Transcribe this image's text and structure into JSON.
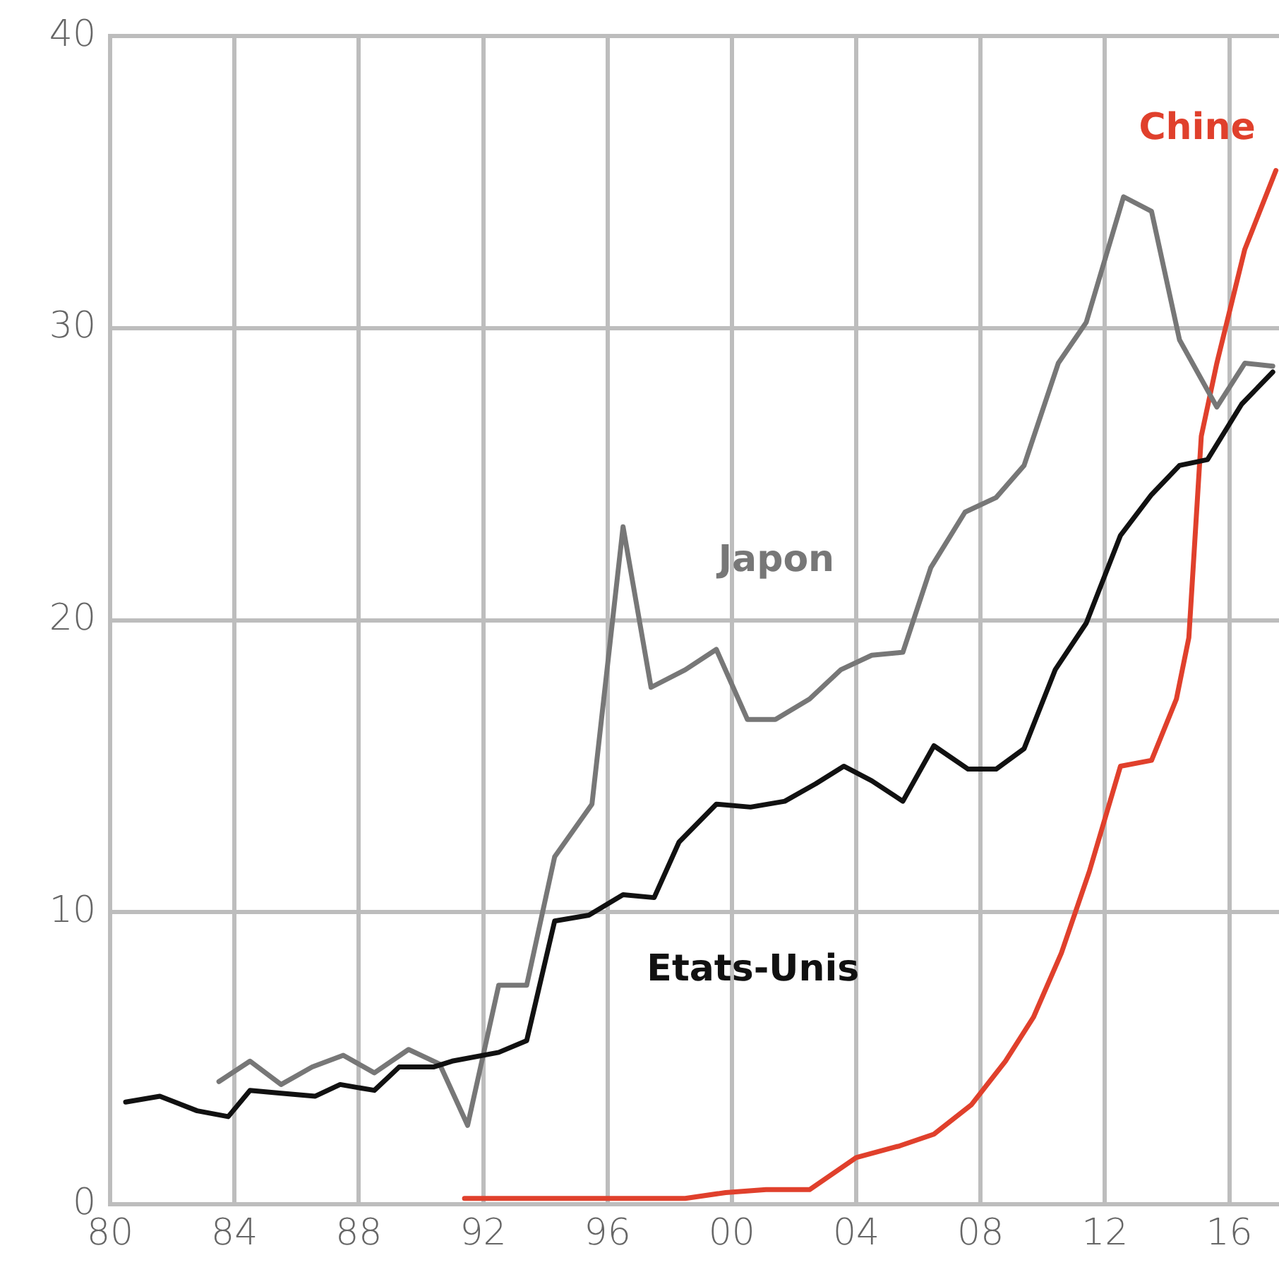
{
  "chart_data": {
    "type": "line",
    "xlim": [
      1980,
      2017.6
    ],
    "ylim": [
      0,
      40
    ],
    "xticks": [
      {
        "value": 1980,
        "label": "80"
      },
      {
        "value": 1984,
        "label": "84"
      },
      {
        "value": 1988,
        "label": "88"
      },
      {
        "value": 1992,
        "label": "92"
      },
      {
        "value": 1996,
        "label": "96"
      },
      {
        "value": 2000,
        "label": "00"
      },
      {
        "value": 2004,
        "label": "04"
      },
      {
        "value": 2008,
        "label": "08"
      },
      {
        "value": 2012,
        "label": "12"
      },
      {
        "value": 2016,
        "label": "16"
      }
    ],
    "yticks": [
      0,
      10,
      20,
      30,
      40
    ],
    "grid": true,
    "legend": false,
    "marker": "none",
    "line_style": "solid",
    "series": [
      {
        "name": "Etats-Unis",
        "color": "#111111",
        "x": [
          1980.5,
          1981.6,
          1982.8,
          1983.8,
          1984.5,
          1985.5,
          1986.6,
          1987.4,
          1988.5,
          1989.3,
          1990.4,
          1991.0,
          1992.5,
          1993.4,
          1994.3,
          1995.4,
          1996.5,
          1997.5,
          1998.3,
          1999.5,
          2000.6,
          2001.7,
          2002.7,
          2003.6,
          2004.5,
          2005.5,
          2006.5,
          2007.6,
          2008.5,
          2009.4,
          2010.4,
          2011.4,
          2012.5,
          2013.5,
          2014.4,
          2015.3,
          2016.4,
          2017.4
        ],
        "values": [
          3.5,
          3.7,
          3.2,
          3.0,
          3.9,
          3.8,
          3.7,
          4.1,
          3.9,
          4.7,
          4.7,
          4.9,
          5.2,
          5.6,
          9.7,
          9.9,
          10.6,
          10.5,
          12.4,
          13.7,
          13.6,
          13.8,
          14.4,
          15.0,
          14.5,
          13.8,
          15.7,
          14.9,
          14.9,
          15.6,
          18.3,
          19.9,
          22.9,
          24.3,
          25.3,
          25.5,
          27.4,
          28.5
        ]
      },
      {
        "name": "Japon",
        "color": "#777777",
        "x": [
          1983.5,
          1984.5,
          1985.5,
          1986.5,
          1987.5,
          1988.5,
          1989.6,
          1990.6,
          1991.5,
          1992.5,
          1993.4,
          1994.3,
          1995.5,
          1996.5,
          1997.4,
          1998.5,
          1999.5,
          2000.5,
          2001.4,
          2002.5,
          2003.5,
          2004.5,
          2005.5,
          2006.4,
          2007.5,
          2008.5,
          2009.4,
          2010.5,
          2011.4,
          2012.6,
          2013.5,
          2014.4,
          2015.6,
          2016.5,
          2017.4
        ],
        "values": [
          4.2,
          4.9,
          4.1,
          4.7,
          5.1,
          4.5,
          5.3,
          4.8,
          2.7,
          7.5,
          7.5,
          11.9,
          13.7,
          23.2,
          17.7,
          18.3,
          19.0,
          16.6,
          16.6,
          17.3,
          18.3,
          18.8,
          18.9,
          21.8,
          23.7,
          24.2,
          25.3,
          28.8,
          30.2,
          34.5,
          34.0,
          29.6,
          27.3,
          28.8,
          28.7
        ]
      },
      {
        "name": "Chine",
        "color": "#e0402c",
        "x": [
          1991.4,
          1998.5,
          1999.8,
          2001.1,
          2002.5,
          2004.0,
          2005.4,
          2006.5,
          2007.7,
          2008.8,
          2009.7,
          2010.6,
          2011.5,
          2012.5,
          2013.5,
          2014.3,
          2014.7,
          2015.1,
          2015.6,
          2016.5,
          2017.5
        ],
        "values": [
          0.2,
          0.2,
          0.4,
          0.5,
          0.5,
          1.6,
          2.0,
          2.4,
          3.4,
          4.9,
          6.4,
          8.6,
          11.4,
          15.0,
          15.2,
          17.3,
          19.4,
          26.3,
          28.8,
          32.7,
          35.4
        ]
      }
    ]
  }
}
